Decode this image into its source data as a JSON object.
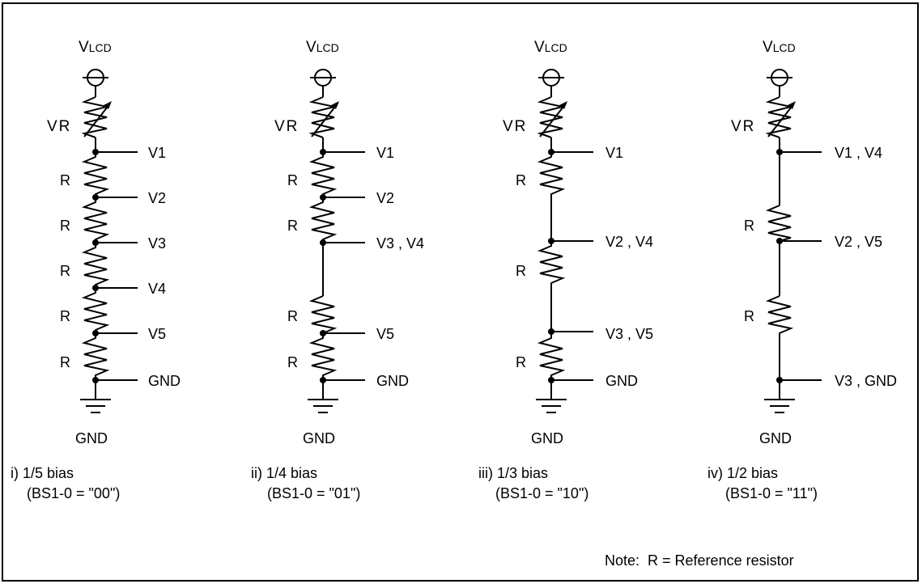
{
  "supply_label": {
    "main": "V",
    "sub": "LCD"
  },
  "variable_resistor_label": "VR",
  "resistor_label": "R",
  "ground_label": "GND",
  "circuits": [
    {
      "id": "i",
      "caption": "i) 1/5 bias",
      "setting": "(BS1-0 = \"00\")",
      "taps": [
        "V1",
        "V2",
        "V3",
        "V4",
        "V5",
        "GND"
      ],
      "resistors": [
        "R",
        "R",
        "R",
        "R",
        "R"
      ]
    },
    {
      "id": "ii",
      "caption": "ii) 1/4 bias",
      "setting": "(BS1-0 = \"01\")",
      "taps": [
        "V1",
        "V2",
        "V3 , V4",
        "V5",
        "GND"
      ],
      "resistors": [
        "R",
        "R",
        "R",
        "R"
      ]
    },
    {
      "id": "iii",
      "caption": "iii) 1/3 bias",
      "setting": "(BS1-0 = \"10\")",
      "taps": [
        "V1",
        "V2 , V4",
        "V3 , V5",
        "GND"
      ],
      "resistors": [
        "R",
        "R",
        "R"
      ]
    },
    {
      "id": "iv",
      "caption": "iv) 1/2 bias",
      "setting": "(BS1-0 = \"11\")",
      "taps": [
        "V1 , V4",
        "V2 , V5",
        "V3 , GND"
      ],
      "resistors": [
        "R",
        "R"
      ]
    }
  ],
  "note": "Note:  R = Reference resistor"
}
